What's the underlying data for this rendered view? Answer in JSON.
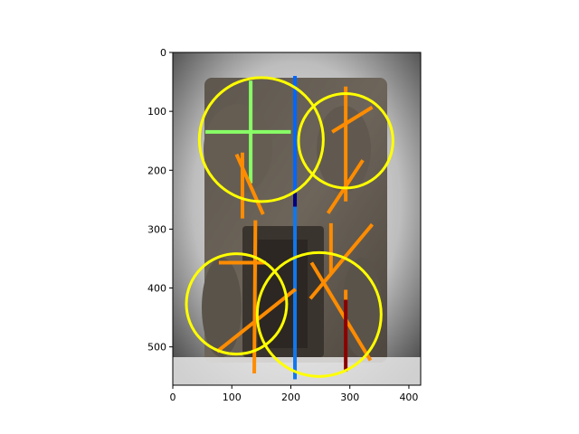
{
  "chart_data": {
    "type": "image-overlay",
    "title": "",
    "xlabel": "",
    "ylabel": "",
    "xlim": [
      0,
      420
    ],
    "ylim": [
      565,
      0
    ],
    "x_ticks": [
      0,
      100,
      200,
      300,
      400
    ],
    "y_ticks": [
      0,
      100,
      200,
      300,
      400,
      500
    ],
    "background": "photograph of a carved stone relief panel (gray/brown) with figures and a central niche",
    "circles": [
      {
        "cx": 150,
        "cy": 148,
        "r": 105,
        "color": "#ffff00"
      },
      {
        "cx": 293,
        "cy": 150,
        "r": 80,
        "color": "#ffff00"
      },
      {
        "cx": 108,
        "cy": 427,
        "r": 85,
        "color": "#ffff00"
      },
      {
        "cx": 248,
        "cy": 445,
        "r": 105,
        "color": "#ffff00"
      }
    ],
    "segments": [
      {
        "x1": 55,
        "y1": 135,
        "x2": 200,
        "y2": 135,
        "color": "#88ff66"
      },
      {
        "x1": 132,
        "y1": 48,
        "x2": 132,
        "y2": 222,
        "color": "#88ff66"
      },
      {
        "x1": 207,
        "y1": 40,
        "x2": 207,
        "y2": 238,
        "color": "#0066ff"
      },
      {
        "x1": 207,
        "y1": 238,
        "x2": 207,
        "y2": 262,
        "color": "#000080"
      },
      {
        "x1": 207,
        "y1": 262,
        "x2": 207,
        "y2": 555,
        "color": "#1177ee"
      },
      {
        "x1": 118,
        "y1": 170,
        "x2": 118,
        "y2": 282,
        "color": "#ff8c00"
      },
      {
        "x1": 108,
        "y1": 173,
        "x2": 153,
        "y2": 275,
        "color": "#ff8c00"
      },
      {
        "x1": 140,
        "y1": 285,
        "x2": 138,
        "y2": 545,
        "color": "#ff8c00"
      },
      {
        "x1": 78,
        "y1": 357,
        "x2": 158,
        "y2": 357,
        "color": "#ff8c00"
      },
      {
        "x1": 75,
        "y1": 508,
        "x2": 208,
        "y2": 402,
        "color": "#ff8c00"
      },
      {
        "x1": 235,
        "y1": 357,
        "x2": 335,
        "y2": 523,
        "color": "#ff8c00"
      },
      {
        "x1": 268,
        "y1": 290,
        "x2": 268,
        "y2": 375,
        "color": "#ff8c00"
      },
      {
        "x1": 233,
        "y1": 418,
        "x2": 338,
        "y2": 292,
        "color": "#ff8c00"
      },
      {
        "x1": 293,
        "y1": 58,
        "x2": 293,
        "y2": 253,
        "color": "#ff8c00"
      },
      {
        "x1": 270,
        "y1": 135,
        "x2": 338,
        "y2": 93,
        "color": "#ff8c00"
      },
      {
        "x1": 263,
        "y1": 273,
        "x2": 322,
        "y2": 183,
        "color": "#ff8c00"
      },
      {
        "x1": 293,
        "y1": 403,
        "x2": 293,
        "y2": 420,
        "color": "#ff8c00"
      },
      {
        "x1": 293,
        "y1": 420,
        "x2": 293,
        "y2": 542,
        "color": "#8b0000"
      }
    ]
  }
}
